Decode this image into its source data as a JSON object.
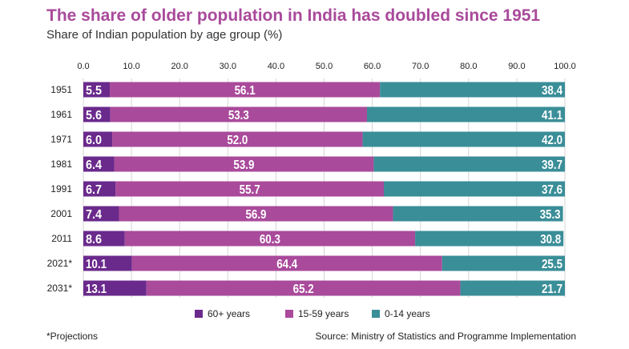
{
  "header": {
    "title": "The share of older population in India has doubled since 1951",
    "subtitle": "Share of Indian population by age group (%)"
  },
  "footer": {
    "note": "*Projections",
    "source": "Source: Ministry of Statistics and Programme Implementation"
  },
  "colors": {
    "series_60_plus": "#6a2a8c",
    "series_15_59": "#a94a9b",
    "series_0_14": "#3a8e98"
  },
  "chart_data": {
    "type": "bar",
    "orientation": "horizontal",
    "stacked": true,
    "xlim": [
      0,
      100
    ],
    "x_ticks": [
      "0.0",
      "10.0",
      "20.0",
      "30.0",
      "40.0",
      "50.0",
      "60.0",
      "70.0",
      "80.0",
      "90.0",
      "100.0"
    ],
    "categories": [
      "1951",
      "1961",
      "1971",
      "1981",
      "1991",
      "2001",
      "2011",
      "2021*",
      "2031*"
    ],
    "series": [
      {
        "name": "60+ years",
        "color": "#6a2a8c",
        "values": [
          5.5,
          5.6,
          6.0,
          6.4,
          6.7,
          7.4,
          8.6,
          10.1,
          13.1
        ]
      },
      {
        "name": "15-59 years",
        "color": "#a94a9b",
        "values": [
          56.1,
          53.3,
          52.0,
          53.9,
          55.7,
          56.9,
          60.3,
          64.4,
          65.2
        ]
      },
      {
        "name": "0-14 years",
        "color": "#3a8e98",
        "values": [
          38.4,
          41.1,
          42.0,
          39.7,
          37.6,
          35.3,
          30.8,
          25.5,
          21.7
        ]
      }
    ],
    "value_labels": [
      [
        "5.5",
        "5.6",
        "6.0",
        "6.4",
        "6.7",
        "7.4",
        "8.6",
        "10.1",
        "13.1"
      ],
      [
        "56.1",
        "53.3",
        "52.0",
        "53.9",
        "55.7",
        "56.9",
        "60.3",
        "64.4",
        "65.2"
      ],
      [
        "38.4",
        "41.1",
        "42.0",
        "39.7",
        "37.6",
        "35.3",
        "30.8",
        "25.5",
        "21.7"
      ]
    ],
    "legend_position": "bottom-center",
    "grid": true
  }
}
